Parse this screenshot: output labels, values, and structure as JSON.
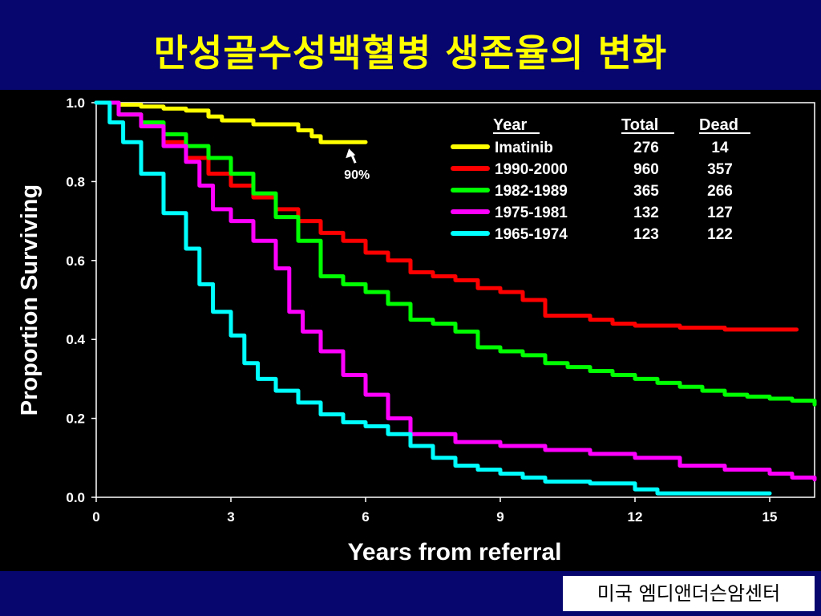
{
  "slide": {
    "title": "만성골수성백혈병 생존율의 변화",
    "source": "미국 엠디앤더슨암센터"
  },
  "chart_data": {
    "type": "line",
    "step": true,
    "xlabel": "Years from referral",
    "ylabel": "Proportion Surviving",
    "xlim": [
      0,
      16
    ],
    "ylim": [
      0,
      1.0
    ],
    "xticks": [
      0,
      3,
      6,
      9,
      12,
      15
    ],
    "xtick_labels": [
      "0",
      "3",
      "6",
      "9",
      "12",
      "15"
    ],
    "yticks": [
      0,
      0.2,
      0.4,
      0.6,
      0.8,
      1.0
    ],
    "ytick_labels": [
      "0.0",
      "0.2",
      "0.4",
      "0.6",
      "0.8",
      "1.0"
    ],
    "legend": {
      "placement": "top-right",
      "headers": [
        "Year",
        "Total",
        "Dead"
      ]
    },
    "annotation": {
      "text": "90%",
      "x": 5.7,
      "y": 0.9
    },
    "series": [
      {
        "name": "Imatinib",
        "total": "276",
        "dead": "14",
        "color": "#ffff00",
        "x": [
          0,
          0.5,
          1.0,
          1.5,
          2.0,
          2.5,
          2.8,
          3.5,
          4.5,
          4.8,
          5.0,
          6.0
        ],
        "y": [
          1.0,
          0.995,
          0.99,
          0.985,
          0.98,
          0.965,
          0.955,
          0.945,
          0.93,
          0.915,
          0.9,
          0.9
        ]
      },
      {
        "name": "1990-2000",
        "total": "960",
        "dead": "357",
        "color": "#ff0000",
        "x": [
          0,
          0.5,
          1.0,
          1.5,
          2.0,
          2.5,
          3.0,
          3.5,
          4.0,
          4.5,
          5.0,
          5.5,
          6.0,
          6.5,
          7.0,
          7.5,
          8.0,
          8.5,
          9.0,
          9.5,
          10.0,
          10.5,
          11.0,
          11.5,
          12.0,
          13.0,
          14.0,
          15.0,
          15.6
        ],
        "y": [
          1.0,
          0.97,
          0.94,
          0.9,
          0.86,
          0.82,
          0.79,
          0.76,
          0.73,
          0.7,
          0.67,
          0.65,
          0.62,
          0.6,
          0.57,
          0.56,
          0.55,
          0.53,
          0.52,
          0.5,
          0.46,
          0.46,
          0.45,
          0.44,
          0.435,
          0.43,
          0.425,
          0.425,
          0.425
        ]
      },
      {
        "name": "1982-1989",
        "total": "365",
        "dead": "266",
        "color": "#00ff00",
        "x": [
          0,
          0.5,
          1.0,
          1.5,
          2.0,
          2.5,
          3.0,
          3.5,
          4.0,
          4.5,
          5.0,
          5.5,
          6.0,
          6.5,
          7.0,
          7.5,
          8.0,
          8.5,
          9.0,
          9.5,
          10.0,
          10.5,
          11.0,
          11.5,
          12.0,
          12.5,
          13.0,
          13.5,
          14.0,
          14.5,
          15.0,
          15.5,
          16.0
        ],
        "y": [
          1.0,
          0.97,
          0.95,
          0.92,
          0.89,
          0.86,
          0.82,
          0.77,
          0.71,
          0.65,
          0.56,
          0.54,
          0.52,
          0.49,
          0.45,
          0.44,
          0.42,
          0.38,
          0.37,
          0.36,
          0.34,
          0.33,
          0.32,
          0.31,
          0.3,
          0.29,
          0.28,
          0.27,
          0.26,
          0.255,
          0.25,
          0.245,
          0.235
        ]
      },
      {
        "name": "1975-1981",
        "total": "132",
        "dead": "127",
        "color": "#ff00ff",
        "x": [
          0,
          0.5,
          1.0,
          1.5,
          2.0,
          2.3,
          2.6,
          3.0,
          3.5,
          4.0,
          4.3,
          4.6,
          5.0,
          5.5,
          6.0,
          6.5,
          7.0,
          7.5,
          8.0,
          9.0,
          10.0,
          11.0,
          12.0,
          13.0,
          14.0,
          15.0,
          15.5,
          16.0
        ],
        "y": [
          1.0,
          0.97,
          0.94,
          0.89,
          0.85,
          0.79,
          0.73,
          0.7,
          0.65,
          0.58,
          0.47,
          0.42,
          0.37,
          0.31,
          0.26,
          0.2,
          0.16,
          0.16,
          0.14,
          0.13,
          0.12,
          0.11,
          0.1,
          0.08,
          0.07,
          0.06,
          0.05,
          0.045
        ]
      },
      {
        "name": "1965-1974",
        "total": "123",
        "dead": "122",
        "color": "#00ffff",
        "x": [
          0,
          0.3,
          0.6,
          1.0,
          1.5,
          2.0,
          2.3,
          2.6,
          3.0,
          3.3,
          3.6,
          4.0,
          4.5,
          5.0,
          5.5,
          6.0,
          6.5,
          7.0,
          7.5,
          8.0,
          8.5,
          9.0,
          9.5,
          10.0,
          11.0,
          12.0,
          12.5,
          13.0,
          14.0,
          15.0
        ],
        "y": [
          1.0,
          0.95,
          0.9,
          0.82,
          0.72,
          0.63,
          0.54,
          0.47,
          0.41,
          0.34,
          0.3,
          0.27,
          0.24,
          0.21,
          0.19,
          0.18,
          0.16,
          0.13,
          0.1,
          0.08,
          0.07,
          0.06,
          0.05,
          0.04,
          0.035,
          0.02,
          0.01,
          0.01,
          0.01,
          0.01
        ]
      }
    ]
  }
}
